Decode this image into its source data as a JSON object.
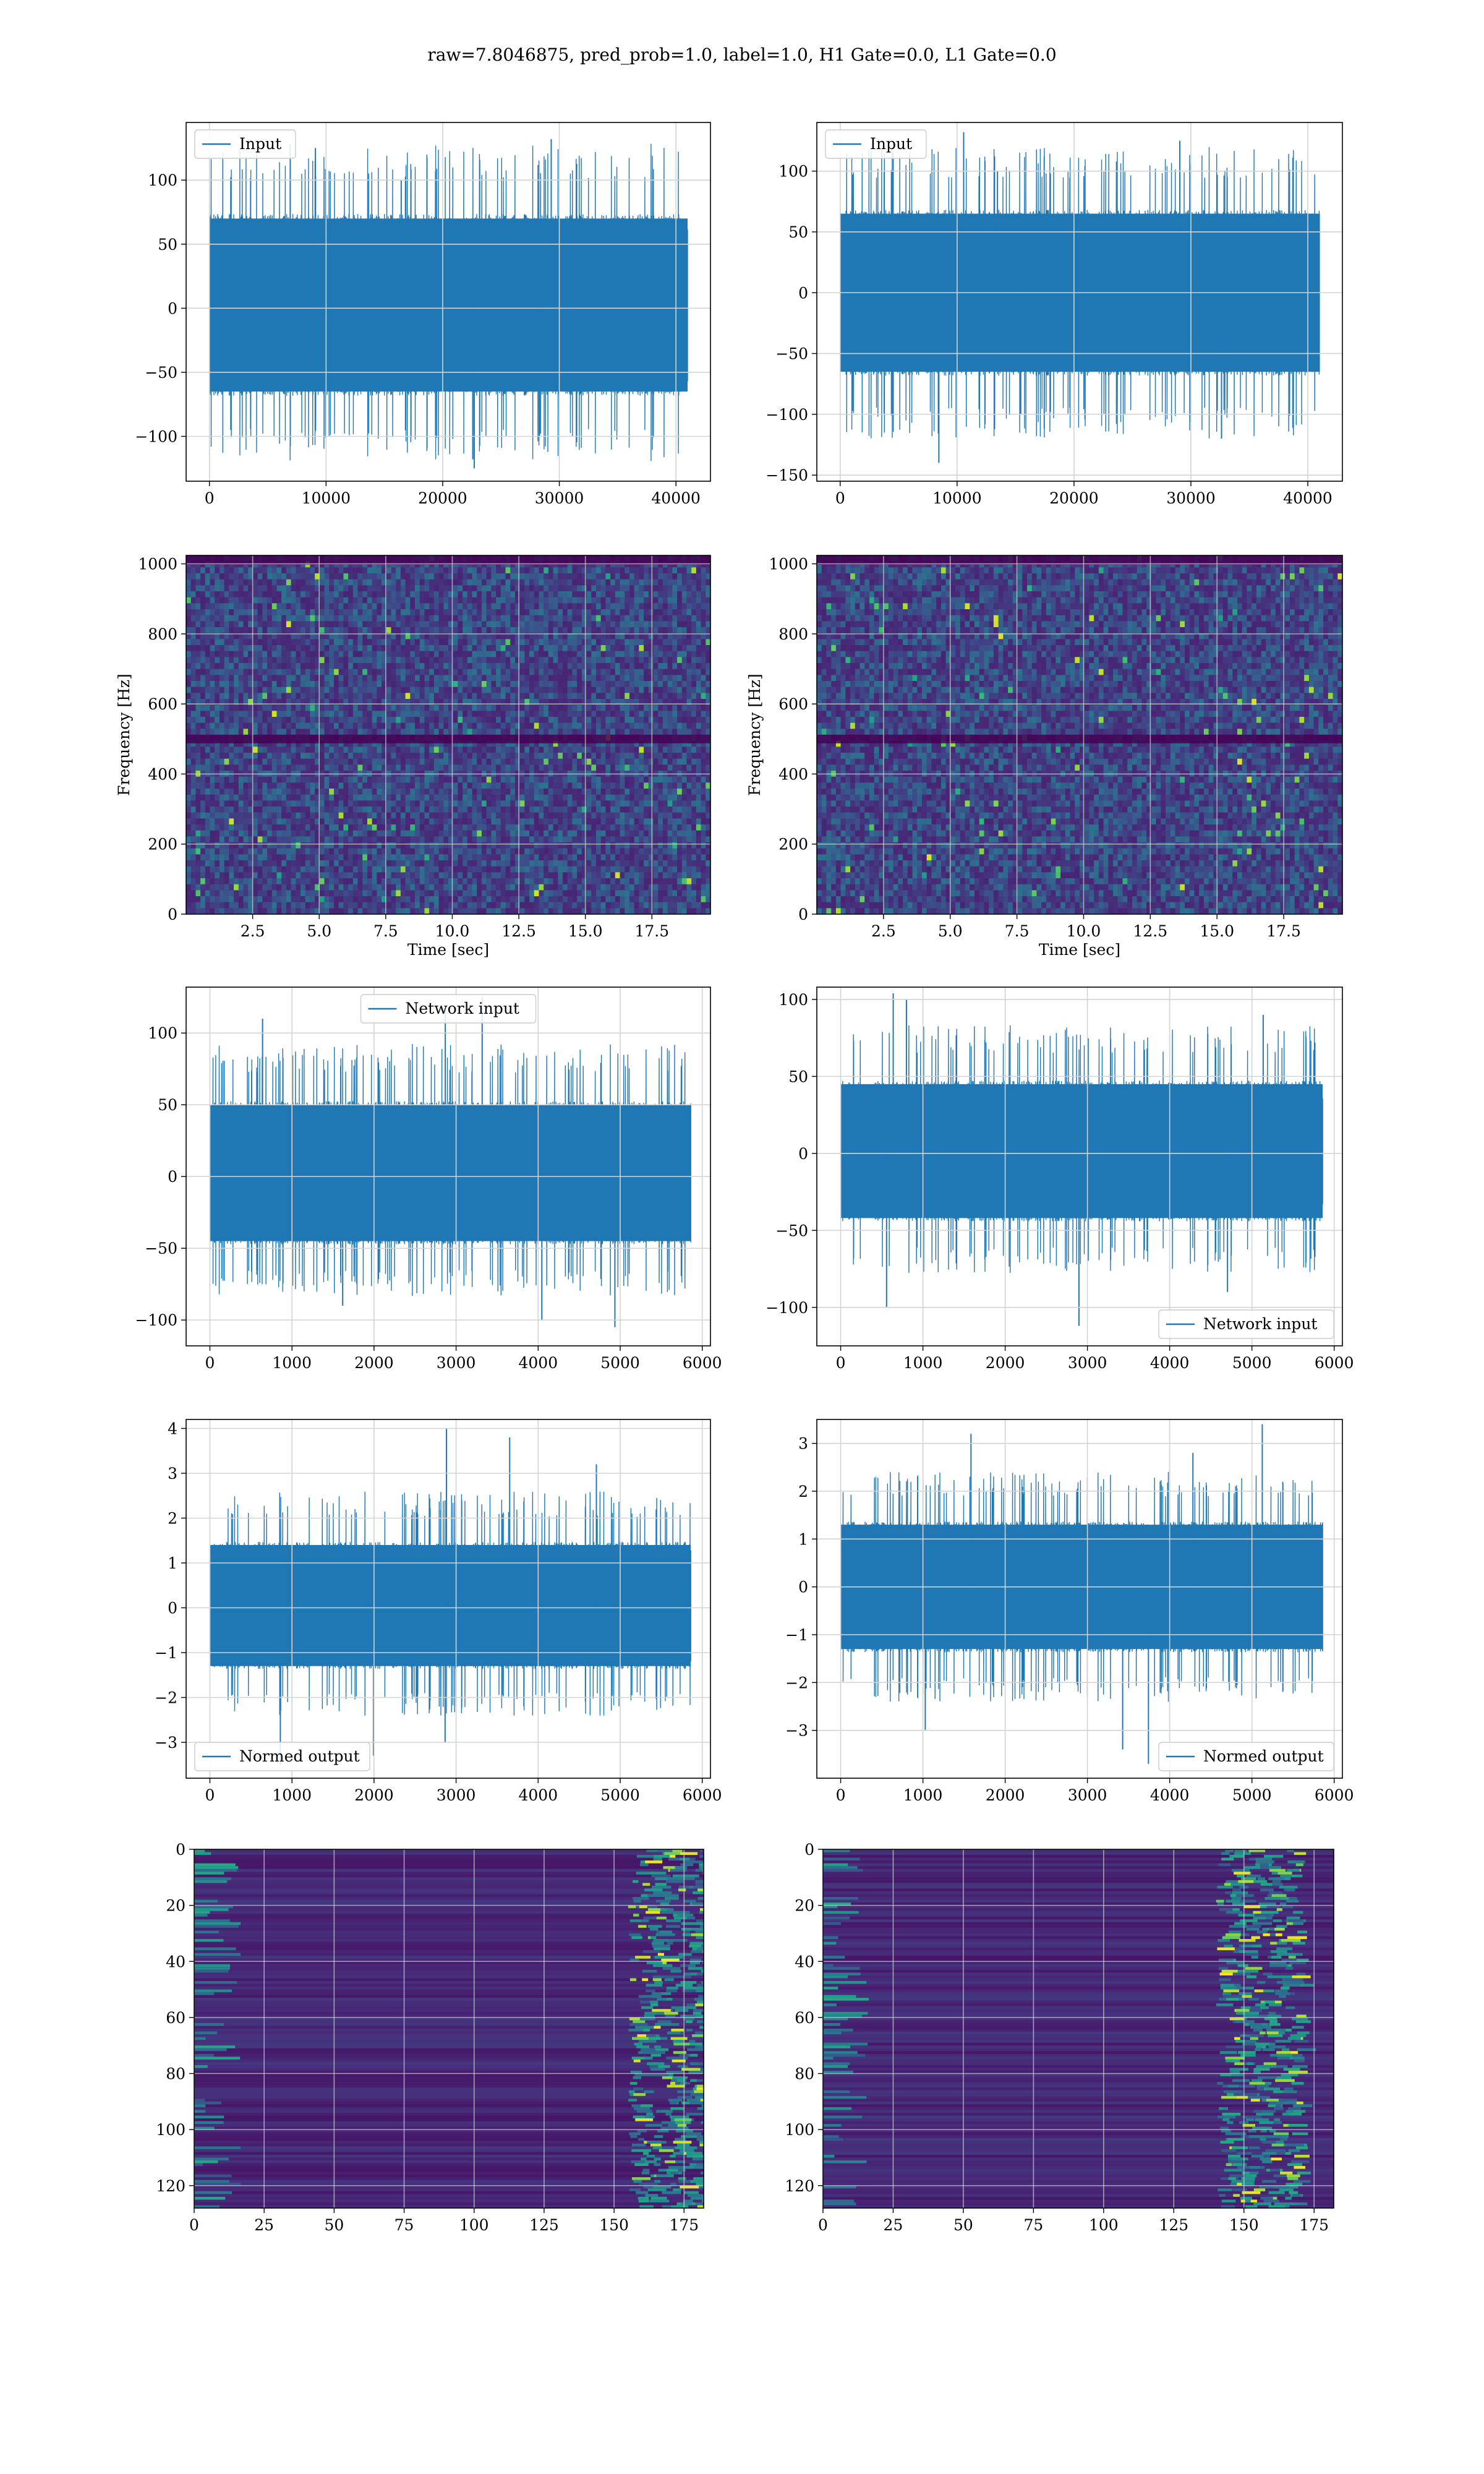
{
  "figure_title": "raw=7.8046875, pred_prob=1.0, label=1.0, H1 Gate=0.0, L1 Gate=0.0",
  "colors": {
    "line": "#1f77b4",
    "grid": "#d3d3d3",
    "viridis_low": "#440154",
    "viridis_mid": "#3b528b",
    "viridis_high": "#21918c",
    "viridis_top": "#fde725"
  },
  "chart_data": [
    {
      "id": "input-left",
      "type": "line",
      "title": "",
      "xlabel": "",
      "ylabel": "",
      "legend": {
        "label": "Input",
        "loc": "upper-left"
      },
      "grid": true,
      "xlim": [
        -2000,
        42960
      ],
      "ylim": [
        -135,
        145
      ],
      "xticks": [
        0,
        10000,
        20000,
        30000,
        40000
      ],
      "yticks": [
        -100,
        -50,
        0,
        50,
        100
      ],
      "signal": {
        "n": 41000,
        "x_max": 41000,
        "band": [
          -65,
          70
        ],
        "peaks_high": [
          100,
          125,
          132
        ],
        "peaks_low": [
          -100,
          -118,
          -125
        ]
      }
    },
    {
      "id": "input-right",
      "type": "line",
      "title": "",
      "xlabel": "",
      "ylabel": "",
      "legend": {
        "label": "Input",
        "loc": "upper-left"
      },
      "grid": true,
      "xlim": [
        -2000,
        42960
      ],
      "ylim": [
        -155,
        140
      ],
      "xticks": [
        0,
        10000,
        20000,
        30000,
        40000
      ],
      "yticks": [
        -150,
        -100,
        -50,
        0,
        50,
        100
      ],
      "signal": {
        "n": 41000,
        "x_max": 41000,
        "band": [
          -65,
          65
        ],
        "peaks_high": [
          100,
          125,
          132
        ],
        "peaks_low": [
          -100,
          -120,
          -140
        ]
      }
    },
    {
      "id": "spectrogram-left",
      "type": "heatmap",
      "title": "",
      "xlabel": "Time [sec]",
      "ylabel": "Frequency [Hz]",
      "grid": true,
      "xlim": [
        0,
        19.7
      ],
      "ylim": [
        0,
        1024
      ],
      "xticks": [
        2.5,
        5.0,
        7.5,
        10.0,
        12.5,
        15.0,
        17.5
      ],
      "yticks": [
        0,
        200,
        400,
        600,
        800,
        1000
      ],
      "dark_bands_hz": [
        500,
        1010
      ]
    },
    {
      "id": "spectrogram-right",
      "type": "heatmap",
      "title": "",
      "xlabel": "Time [sec]",
      "ylabel": "Frequency [Hz]",
      "grid": true,
      "xlim": [
        0,
        19.7
      ],
      "ylim": [
        0,
        1024
      ],
      "xticks": [
        2.5,
        5.0,
        7.5,
        10.0,
        12.5,
        15.0,
        17.5
      ],
      "yticks": [
        0,
        200,
        400,
        600,
        800,
        1000
      ],
      "dark_bands_hz": [
        500,
        1010
      ]
    },
    {
      "id": "network-input-left",
      "type": "line",
      "title": "",
      "xlabel": "",
      "ylabel": "",
      "legend": {
        "label": "Network input",
        "loc": "upper-center"
      },
      "grid": true,
      "xlim": [
        -290,
        6100
      ],
      "ylim": [
        -118,
        132
      ],
      "xticks": [
        0,
        1000,
        2000,
        3000,
        4000,
        5000,
        6000
      ],
      "yticks": [
        -100,
        -50,
        0,
        50,
        100
      ],
      "signal": {
        "n": 5860,
        "x_max": 5860,
        "band": [
          -45,
          50
        ],
        "peaks_high": [
          110,
          118,
          125
        ],
        "peaks_low": [
          -90,
          -100,
          -105
        ]
      }
    },
    {
      "id": "network-input-right",
      "type": "line",
      "title": "",
      "xlabel": "",
      "ylabel": "",
      "legend": {
        "label": "Network input",
        "loc": "lower-right"
      },
      "grid": true,
      "xlim": [
        -290,
        6100
      ],
      "ylim": [
        -125,
        108
      ],
      "xticks": [
        0,
        1000,
        2000,
        3000,
        4000,
        5000,
        6000
      ],
      "yticks": [
        -100,
        -50,
        0,
        50,
        100
      ],
      "signal": {
        "n": 5860,
        "x_max": 5860,
        "band": [
          -42,
          45
        ],
        "peaks_high": [
          90,
          100,
          104
        ],
        "peaks_low": [
          -90,
          -100,
          -112
        ]
      }
    },
    {
      "id": "normed-output-left",
      "type": "line",
      "title": "",
      "xlabel": "",
      "ylabel": "",
      "legend": {
        "label": "Normed output",
        "loc": "lower-left"
      },
      "grid": true,
      "xlim": [
        -290,
        6100
      ],
      "ylim": [
        -3.8,
        4.2
      ],
      "xticks": [
        0,
        1000,
        2000,
        3000,
        4000,
        5000,
        6000
      ],
      "yticks": [
        -3,
        -2,
        -1,
        0,
        1,
        2,
        3,
        4
      ],
      "signal": {
        "n": 5860,
        "x_max": 5860,
        "band": [
          -1.3,
          1.4
        ],
        "peaks_high": [
          3.2,
          3.8,
          4.0
        ],
        "peaks_low": [
          -3.0,
          -3.3,
          -3.5
        ]
      }
    },
    {
      "id": "normed-output-right",
      "type": "line",
      "title": "",
      "xlabel": "",
      "ylabel": "",
      "legend": {
        "label": "Normed output",
        "loc": "lower-right"
      },
      "grid": true,
      "xlim": [
        -290,
        6100
      ],
      "ylim": [
        -4.0,
        3.5
      ],
      "xticks": [
        0,
        1000,
        2000,
        3000,
        4000,
        5000,
        6000
      ],
      "yticks": [
        -3,
        -2,
        -1,
        0,
        1,
        2,
        3
      ],
      "signal": {
        "n": 5860,
        "x_max": 5860,
        "band": [
          -1.3,
          1.3
        ],
        "peaks_high": [
          2.8,
          3.2,
          3.4
        ],
        "peaks_low": [
          -3.0,
          -3.4,
          -3.7
        ]
      }
    },
    {
      "id": "activation-left",
      "type": "heatmap",
      "title": "",
      "xlabel": "",
      "ylabel": "",
      "grid": true,
      "xlim": [
        0,
        182
      ],
      "ylim": [
        128,
        0
      ],
      "xticks": [
        0,
        25,
        50,
        75,
        100,
        125,
        150,
        175
      ],
      "yticks": [
        0,
        20,
        40,
        60,
        80,
        100,
        120
      ],
      "bright_columns": [
        165,
        180
      ]
    },
    {
      "id": "activation-right",
      "type": "heatmap",
      "title": "",
      "xlabel": "",
      "ylabel": "",
      "grid": true,
      "xlim": [
        0,
        182
      ],
      "ylim": [
        128,
        0
      ],
      "xticks": [
        0,
        25,
        50,
        75,
        100,
        125,
        150,
        175
      ],
      "yticks": [
        0,
        20,
        40,
        60,
        80,
        100,
        120
      ],
      "bright_columns": [
        150,
        165
      ]
    }
  ]
}
